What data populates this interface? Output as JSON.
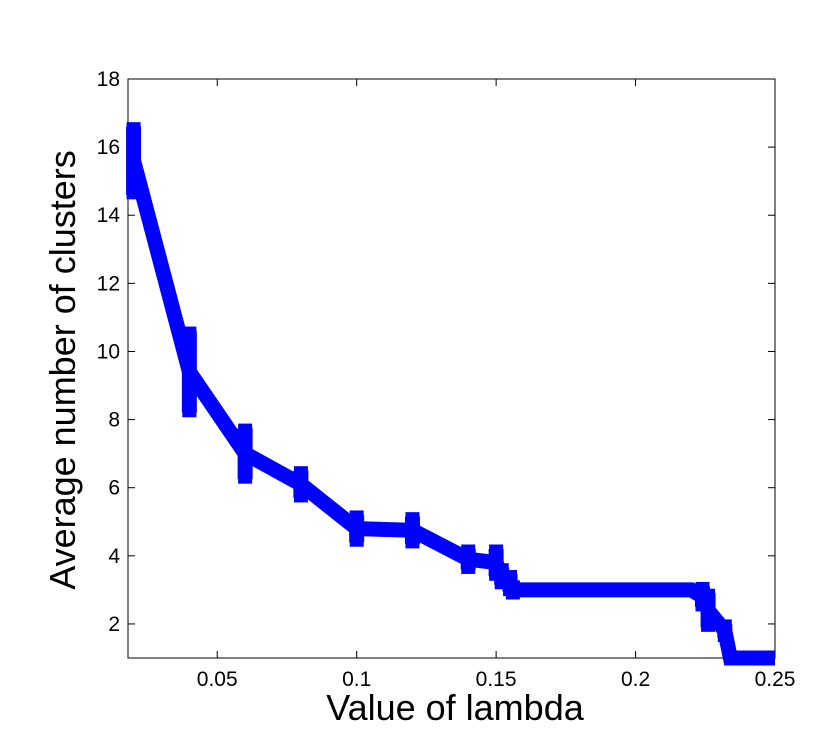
{
  "chart_data": {
    "type": "line",
    "title": "",
    "xlabel": "Value of lambda",
    "ylabel": "Average number of clusters",
    "xlim": [
      0.018,
      0.25
    ],
    "ylim": [
      1,
      18
    ],
    "xticks": [
      0.05,
      0.1,
      0.15,
      0.2,
      0.25
    ],
    "xtick_labels": [
      "0.05",
      "0.1",
      "0.15",
      "0.2",
      "0.25"
    ],
    "yticks": [
      2,
      4,
      6,
      8,
      10,
      12,
      14,
      16,
      18
    ],
    "ytick_labels": [
      "2",
      "4",
      "6",
      "8",
      "10",
      "12",
      "14",
      "16",
      "18"
    ],
    "grid": false,
    "legend": "none",
    "series": [
      {
        "color": "#0000ff",
        "x": [
          0.02,
          0.04,
          0.06,
          0.08,
          0.1,
          0.12,
          0.14,
          0.15,
          0.152,
          0.155,
          0.156,
          0.18,
          0.2,
          0.22,
          0.224,
          0.226,
          0.232,
          0.234,
          0.25
        ],
        "y": [
          15.6,
          9.4,
          7.0,
          6.1,
          4.8,
          4.75,
          3.9,
          3.8,
          3.4,
          3.2,
          3.0,
          3.0,
          3.0,
          3.0,
          2.8,
          2.4,
          1.8,
          1.0,
          1.0
        ],
        "error": [
          1.0,
          1.2,
          0.75,
          0.4,
          0.4,
          0.4,
          0.3,
          0.4,
          0.25,
          0.25,
          0.15,
          0.0,
          0.0,
          0.0,
          0.3,
          0.5,
          0.2,
          0.0,
          0.0
        ]
      }
    ]
  }
}
